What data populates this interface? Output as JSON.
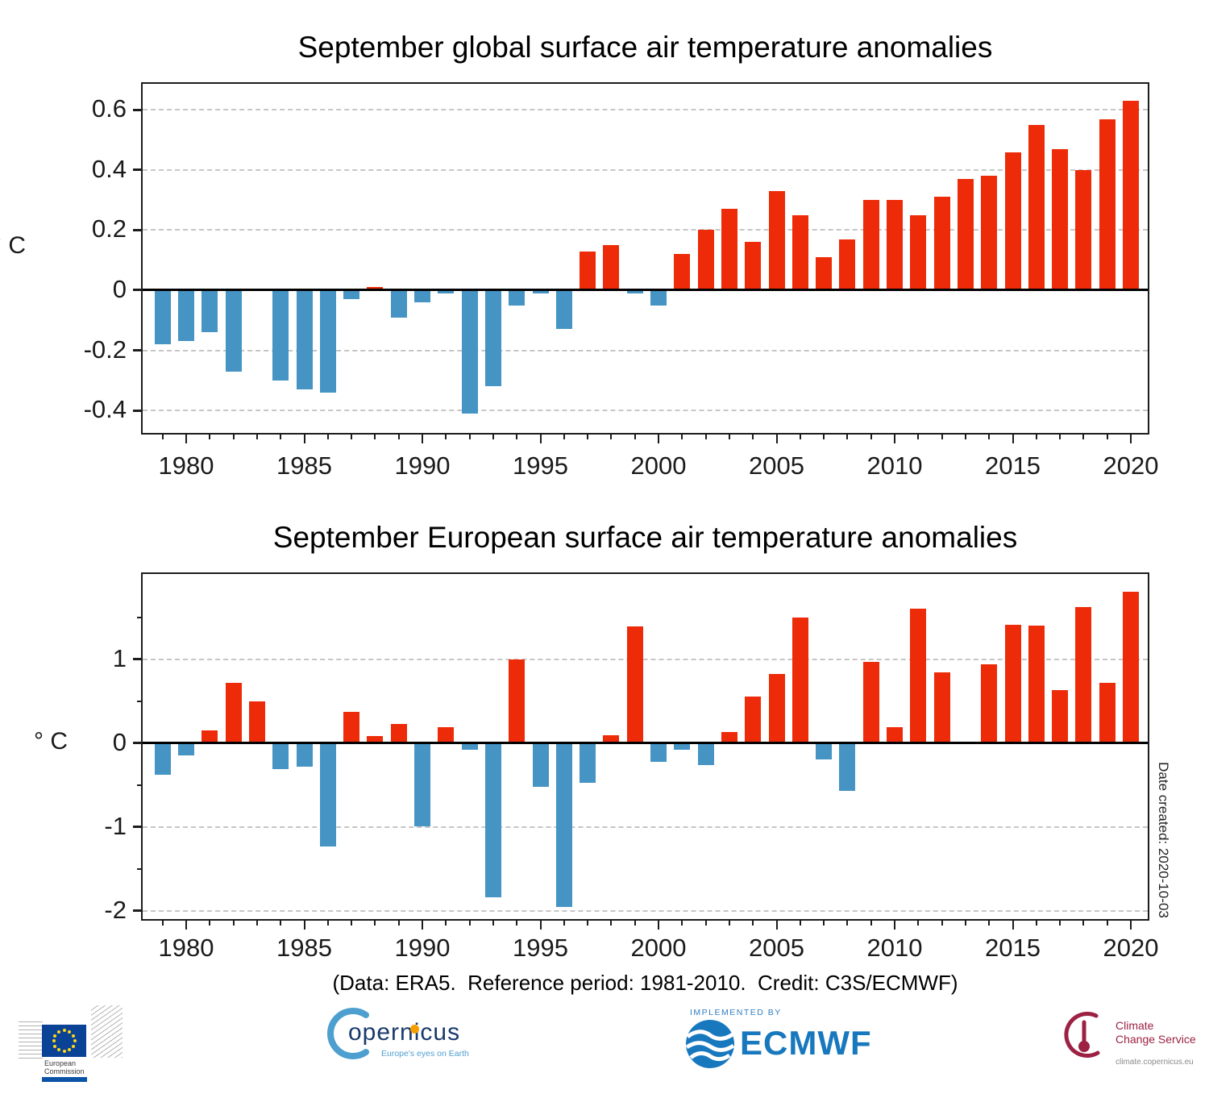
{
  "chart_data": [
    {
      "type": "bar",
      "title": "September global surface air temperature anomalies",
      "ylabel": "° C",
      "xlabel": "",
      "grid": "dashed-horizontal",
      "legend": "none",
      "x": [
        1979,
        1980,
        1981,
        1982,
        1983,
        1984,
        1985,
        1986,
        1987,
        1988,
        1989,
        1990,
        1991,
        1992,
        1993,
        1994,
        1995,
        1996,
        1997,
        1998,
        1999,
        2000,
        2001,
        2002,
        2003,
        2004,
        2005,
        2006,
        2007,
        2008,
        2009,
        2010,
        2011,
        2012,
        2013,
        2014,
        2015,
        2016,
        2017,
        2018,
        2019,
        2020
      ],
      "values": [
        -0.18,
        -0.17,
        -0.14,
        -0.27,
        0,
        -0.3,
        -0.33,
        -0.34,
        -0.03,
        0.01,
        -0.09,
        -0.04,
        -0.01,
        -0.41,
        -0.32,
        -0.05,
        -0.01,
        -0.13,
        0.13,
        0.15,
        -0.01,
        -0.05,
        0.12,
        0.2,
        0.27,
        0.16,
        0.33,
        0.25,
        0.11,
        0.17,
        0.3,
        0.3,
        0.25,
        0.31,
        0.37,
        0.38,
        0.46,
        0.55,
        0.47,
        0.4,
        0.57,
        0.63
      ],
      "yticks": [
        0.6,
        0.4,
        0.2,
        0,
        -0.2,
        -0.4
      ],
      "ytick_labels": [
        "0.6",
        "0.4",
        "0.2",
        "0",
        "-0.2",
        "-0.4"
      ],
      "yticks_minor": [],
      "xticks": [
        1980,
        1985,
        1990,
        1995,
        2000,
        2005,
        2010,
        2015,
        2020
      ],
      "ylim": [
        -0.475,
        0.687
      ],
      "bar_color_positive": "#ee2b09",
      "bar_color_negative": "#4594c4"
    },
    {
      "type": "bar",
      "title": "September European surface air temperature anomalies",
      "ylabel": "° C",
      "xlabel": "",
      "grid": "dashed-horizontal",
      "legend": "none",
      "x": [
        1979,
        1980,
        1981,
        1982,
        1983,
        1984,
        1985,
        1986,
        1987,
        1988,
        1989,
        1990,
        1991,
        1992,
        1993,
        1994,
        1995,
        1996,
        1997,
        1998,
        1999,
        2000,
        2001,
        2002,
        2003,
        2004,
        2005,
        2006,
        2007,
        2008,
        2009,
        2010,
        2011,
        2012,
        2013,
        2014,
        2015,
        2016,
        2017,
        2018,
        2019,
        2020
      ],
      "values": [
        -0.38,
        -0.15,
        0.15,
        0.72,
        0.5,
        -0.31,
        -0.28,
        -1.23,
        0.37,
        0.08,
        0.23,
        -0.99,
        0.19,
        -0.08,
        -1.84,
        1.0,
        -0.52,
        -1.95,
        -0.47,
        0.09,
        1.39,
        -0.22,
        -0.08,
        -0.26,
        0.13,
        0.55,
        0.82,
        1.5,
        -0.2,
        -0.57,
        0.97,
        0.19,
        1.6,
        0.84,
        0,
        0.94,
        1.41,
        1.4,
        0.63,
        1.62,
        0.72,
        1.8
      ],
      "yticks": [
        1,
        0,
        -1,
        -2
      ],
      "ytick_labels": [
        "1",
        "0",
        "-1",
        "-2"
      ],
      "yticks_minor": [
        1.5,
        0.5,
        -0.5,
        -1.5
      ],
      "xticks": [
        1980,
        1985,
        1990,
        1995,
        2000,
        2005,
        2010,
        2015,
        2020
      ],
      "ylim": [
        -2.097,
        2.014
      ],
      "bar_color_positive": "#ee2b09",
      "bar_color_negative": "#4594c4"
    }
  ],
  "caption": "(Data: ERA5.  Reference period: 1981-2010.  Credit: C3S/ECMWF)",
  "date_note": "Date created: 2020-10-03",
  "logos": {
    "european_commission": {
      "line1": "European",
      "line2": "Commission"
    },
    "copernicus": {
      "text": "opernicus",
      "subtext": "Europe's eyes on Earth"
    },
    "ecmwf": {
      "tagline": "IMPLEMENTED BY",
      "text": "ECMWF"
    },
    "c3s": {
      "line1": "Climate",
      "line2": "Change Service",
      "url": "climate.copernicus.eu"
    }
  }
}
